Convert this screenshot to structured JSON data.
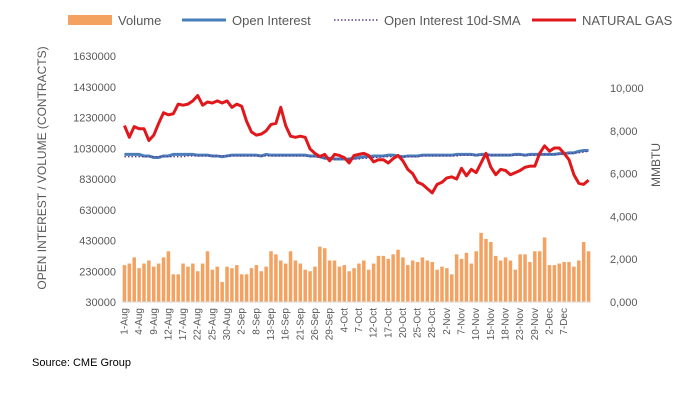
{
  "source": "Source: CME Group",
  "colors": {
    "volume": "#F4A261",
    "open_interest": "#4A7EBB",
    "sma": "#5B3A8F",
    "natural_gas": "#E0181B",
    "axis_text": "#595959",
    "grid": "#D9D9D9"
  },
  "chart_data": {
    "type": "bar",
    "title": "",
    "legend": [
      "Volume",
      "Open Interest",
      "Open Interest 10d-SMA",
      "NATURAL GAS"
    ],
    "legend_position": "top",
    "ylabel": "OPEN INTEREST / VOLUME (CONTRACTS)",
    "y2label": "MMBTU",
    "ylim": [
      30000,
      1630000
    ],
    "y_ticks": [
      "1630000",
      "1430000",
      "1230000",
      "1030000",
      "830000",
      "630000",
      "430000",
      "230000",
      "30000"
    ],
    "y_tick_values": [
      1630000,
      1430000,
      1230000,
      1030000,
      830000,
      630000,
      430000,
      230000,
      30000
    ],
    "y2lim": [
      0,
      11500
    ],
    "y2_ticks": [
      "10,000",
      "8,000",
      "6,000",
      "4,000",
      "2,000",
      "0,000"
    ],
    "y2_tick_values": [
      10000,
      8000,
      6000,
      4000,
      2000,
      0
    ],
    "x_tick_labels": [
      "1-Aug",
      "4-Aug",
      "9-Aug",
      "12-Aug",
      "17-Aug",
      "22-Aug",
      "25-Aug",
      "30-Aug",
      "2-Sep",
      "8-Sep",
      "13-Sep",
      "16-Sep",
      "21-Sep",
      "26-Sep",
      "29-Sep",
      "4-Oct",
      "7-Oct",
      "12-Oct",
      "17-Oct",
      "20-Oct",
      "25-Oct",
      "28-Oct",
      "2-Nov",
      "7-Nov",
      "10-Nov",
      "15-Nov",
      "18-Nov",
      "23-Nov",
      "29-Nov",
      "2-Dec",
      "7-Dec"
    ],
    "x_tick_index": [
      0,
      3,
      6,
      9,
      12,
      15,
      18,
      21,
      24,
      27,
      30,
      33,
      36,
      39,
      42,
      45,
      48,
      51,
      54,
      57,
      60,
      63,
      66,
      69,
      72,
      75,
      78,
      81,
      84,
      87,
      90
    ],
    "series": [
      {
        "name": "Volume",
        "type": "bar",
        "axis": "left",
        "values": [
          270000,
          280000,
          320000,
          250000,
          280000,
          300000,
          260000,
          280000,
          320000,
          360000,
          210000,
          210000,
          280000,
          260000,
          280000,
          230000,
          280000,
          360000,
          240000,
          260000,
          160000,
          260000,
          250000,
          270000,
          210000,
          210000,
          250000,
          270000,
          230000,
          260000,
          360000,
          340000,
          300000,
          280000,
          360000,
          300000,
          280000,
          240000,
          230000,
          260000,
          390000,
          380000,
          300000,
          300000,
          260000,
          270000,
          230000,
          250000,
          280000,
          300000,
          240000,
          280000,
          330000,
          330000,
          310000,
          340000,
          370000,
          320000,
          270000,
          300000,
          290000,
          320000,
          300000,
          290000,
          240000,
          260000,
          250000,
          210000,
          340000,
          310000,
          350000,
          280000,
          360000,
          480000,
          440000,
          420000,
          330000,
          300000,
          320000,
          300000,
          240000,
          340000,
          340000,
          290000,
          360000,
          360000,
          450000,
          270000,
          270000,
          280000,
          290000,
          290000,
          260000,
          300000,
          420000,
          360000
        ]
      },
      {
        "name": "Open Interest",
        "type": "line",
        "axis": "left",
        "values": [
          990000,
          990000,
          990000,
          990000,
          980000,
          980000,
          970000,
          970000,
          980000,
          980000,
          990000,
          990000,
          990000,
          990000,
          990000,
          985000,
          985000,
          985000,
          980000,
          980000,
          975000,
          980000,
          985000,
          985000,
          985000,
          985000,
          985000,
          985000,
          980000,
          990000,
          985000,
          985000,
          985000,
          985000,
          985000,
          985000,
          985000,
          985000,
          980000,
          980000,
          975000,
          965000,
          965000,
          960000,
          960000,
          960000,
          960000,
          965000,
          970000,
          975000,
          975000,
          980000,
          980000,
          980000,
          985000,
          985000,
          980000,
          975000,
          980000,
          980000,
          980000,
          985000,
          985000,
          985000,
          985000,
          985000,
          985000,
          985000,
          990000,
          990000,
          990000,
          990000,
          985000,
          990000,
          990000,
          985000,
          985000,
          985000,
          985000,
          985000,
          990000,
          990000,
          985000,
          990000,
          990000,
          990000,
          990000,
          990000,
          990000,
          995000,
          995000,
          1000000,
          1000000,
          1010000,
          1015000,
          1015000
        ]
      },
      {
        "name": "Open Interest 10d-SMA",
        "type": "line",
        "axis": "left",
        "values": [
          975000,
          975000,
          975000,
          975000,
          975000,
          975000,
          975000,
          975000,
          975000,
          975000,
          975000,
          975000,
          975000,
          980000,
          980000,
          980000,
          980000,
          980000,
          980000,
          980000,
          980000,
          980000,
          980000,
          980000,
          980000,
          980000,
          980000,
          980000,
          980000,
          980000,
          980000,
          980000,
          980000,
          980000,
          980000,
          980000,
          980000,
          980000,
          975000,
          975000,
          970000,
          965000,
          960000,
          960000,
          960000,
          960000,
          960000,
          960000,
          960000,
          965000,
          965000,
          970000,
          970000,
          975000,
          975000,
          975000,
          975000,
          975000,
          975000,
          975000,
          975000,
          980000,
          980000,
          980000,
          980000,
          980000,
          980000,
          980000,
          980000,
          985000,
          985000,
          985000,
          985000,
          985000,
          985000,
          985000,
          985000,
          985000,
          985000,
          985000,
          985000,
          985000,
          985000,
          985000,
          985000,
          990000,
          990000,
          990000,
          990000,
          990000,
          995000,
          995000,
          1000000,
          1000000,
          1005000,
          1010000
        ]
      },
      {
        "name": "NATURAL GAS",
        "type": "line",
        "axis": "right",
        "values": [
          8250,
          7700,
          8200,
          8100,
          8100,
          7550,
          7800,
          8350,
          8850,
          8750,
          8800,
          9250,
          9200,
          9250,
          9400,
          9650,
          9200,
          9350,
          9300,
          9400,
          9300,
          9400,
          9100,
          9250,
          9150,
          8450,
          7950,
          7800,
          7850,
          8000,
          8300,
          8350,
          9100,
          8250,
          7750,
          7700,
          7750,
          7700,
          7150,
          6950,
          6800,
          6900,
          6600,
          6900,
          6850,
          6750,
          6500,
          6850,
          6900,
          6950,
          6850,
          6550,
          6650,
          6650,
          6500,
          6700,
          6850,
          6600,
          6200,
          6000,
          5600,
          5500,
          5300,
          5100,
          5500,
          5600,
          5800,
          5850,
          5750,
          6250,
          5900,
          6200,
          6050,
          6500,
          6950,
          6300,
          5950,
          6200,
          6150,
          5950,
          6050,
          6150,
          6300,
          6350,
          6350,
          6950,
          7300,
          7050,
          7200,
          7200,
          6950,
          6650,
          5950,
          5550,
          5500,
          5700
        ]
      }
    ]
  }
}
